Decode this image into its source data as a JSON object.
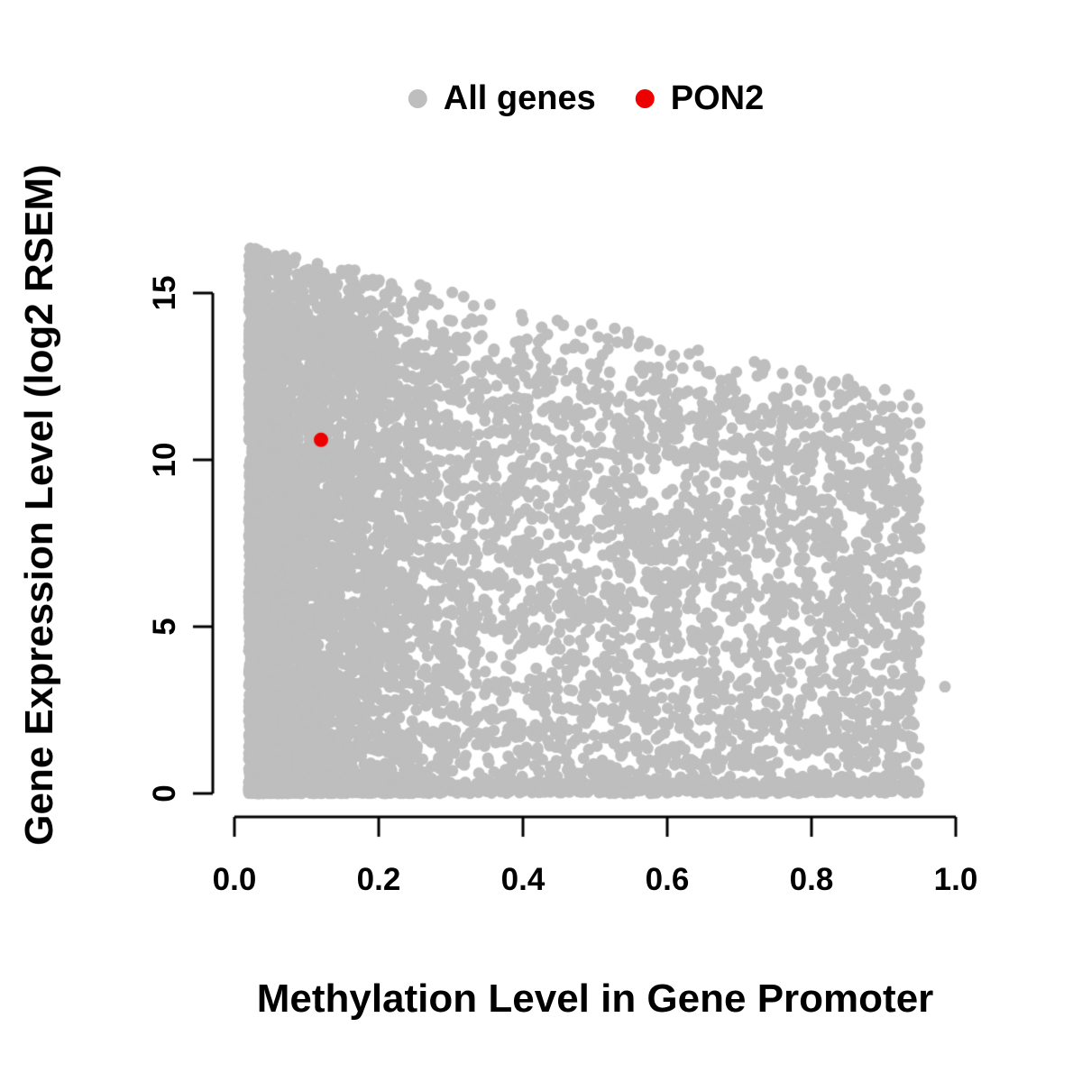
{
  "chart_data": {
    "type": "scatter",
    "title": "",
    "xlabel": "Methylation Level in Gene Promoter",
    "ylabel": "Gene Expression Level (log2 RSEM)",
    "xlim": [
      0.0,
      1.0
    ],
    "ylim": [
      0,
      17
    ],
    "grid": false,
    "x_ticks": [
      "0.0",
      "0.2",
      "0.4",
      "0.6",
      "0.8",
      "1.0"
    ],
    "x_tick_values": [
      0,
      0.2,
      0.4,
      0.6,
      0.8,
      1.0
    ],
    "y_ticks": [
      "0",
      "5",
      "10",
      "15"
    ],
    "y_tick_values": [
      0,
      5,
      10,
      15
    ],
    "legend": {
      "position": "top-center",
      "items": [
        {
          "label": "All genes",
          "color": "#bebebe"
        },
        {
          "label": "PON2",
          "color": "#ee0000"
        }
      ]
    },
    "series": [
      {
        "name": "All genes",
        "color": "#bebebe",
        "style": "dense cloud; upper bound of expression decreases as promoter methylation increases",
        "x_range": [
          0.02,
          0.96
        ],
        "y_range": [
          0,
          16.6
        ],
        "outlier_points": [
          [
            0.985,
            3.2
          ]
        ],
        "generation": {
          "seed": 42,
          "n": 9000,
          "x_min": 0.02,
          "left_cluster_weight": 0.5,
          "left_cluster_span": 0.3,
          "uniform_span": 0.93,
          "main_top_at_x0": 14.6,
          "main_top_slope": -4.2,
          "max_top_at_x0": 16.5,
          "max_top_slope": -4.8,
          "bottom_edge_fraction": 0.14,
          "bottom_edge_height": 0.35,
          "upper_scatter_fraction": 0.06,
          "point_radius_px": 6.5
        }
      },
      {
        "name": "PON2",
        "color": "#ee0000",
        "points": [
          [
            0.12,
            10.6
          ]
        ],
        "point_radius_px": 8
      }
    ]
  }
}
